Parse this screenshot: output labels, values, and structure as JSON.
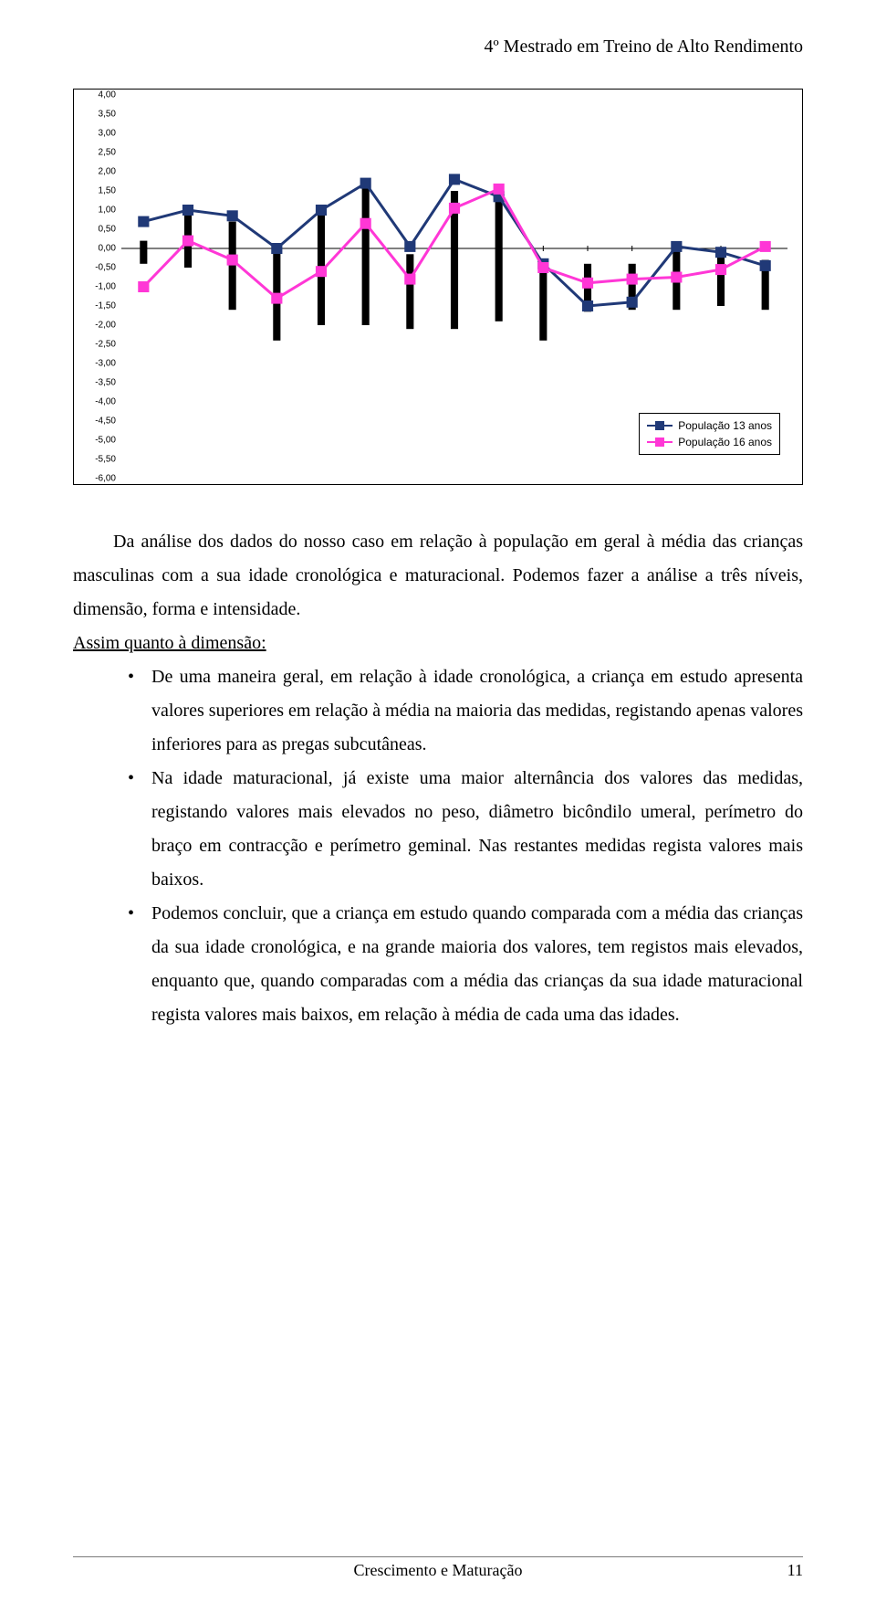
{
  "running_head": "4º Mestrado em Treino de Alto Rendimento",
  "chart": {
    "type": "line-with-error-bars",
    "background_color": "#ffffff",
    "border_color": "#000000",
    "ylim_min": -6.0,
    "ylim_max": 4.0,
    "ytick_step": 0.5,
    "ytick_labels": [
      "4,00",
      "3,50",
      "3,00",
      "2,50",
      "2,00",
      "1,50",
      "1,00",
      "0,50",
      "0,00",
      "-0,50",
      "-1,00",
      "-1,50",
      "-2,00",
      "-2,50",
      "-3,00",
      "-3,50",
      "-4,00",
      "-4,50",
      "-5,00",
      "-5,50",
      "-6,00"
    ],
    "label_fontsize": 10,
    "label_color": "#000000",
    "n_points": 15,
    "zero_line": true,
    "series_navy": {
      "label": "População 13 anos",
      "color": "#203977",
      "marker": "square",
      "marker_size": 12,
      "line_width": 3,
      "values": [
        0.7,
        1.0,
        0.85,
        0.0,
        1.0,
        1.7,
        0.05,
        1.8,
        1.35,
        -0.4,
        -1.5,
        -1.4,
        0.05,
        -0.1,
        -0.45
      ]
    },
    "series_magenta": {
      "label": "População 16 anos",
      "color": "#ff37d6",
      "marker": "square",
      "marker_size": 12,
      "line_width": 3,
      "values": [
        -1.0,
        0.2,
        -0.3,
        -1.3,
        -0.6,
        0.65,
        -0.8,
        1.05,
        1.55,
        -0.5,
        -0.9,
        -0.8,
        -0.75,
        -0.55,
        0.05
      ]
    },
    "error_bars": {
      "color": "#000000",
      "width": 8,
      "pairs": [
        [
          0.2,
          -0.4
        ],
        [
          0.9,
          -0.5
        ],
        [
          0.7,
          -1.6
        ],
        [
          -0.1,
          -2.4
        ],
        [
          0.9,
          -2.0
        ],
        [
          1.6,
          -2.0
        ],
        [
          -0.15,
          -2.1
        ],
        [
          1.5,
          -2.1
        ],
        [
          1.25,
          -1.9
        ],
        [
          -0.35,
          -2.4
        ],
        [
          -0.4,
          -1.65
        ],
        [
          -0.4,
          -1.6
        ],
        [
          0.0,
          -1.6
        ],
        [
          -0.15,
          -1.5
        ],
        [
          -0.3,
          -1.6
        ]
      ]
    },
    "legend_series": [
      "series_navy",
      "series_magenta"
    ]
  },
  "para1": "Da análise dos dados do nosso caso em relação à população em geral à média das crianças masculinas com a sua idade cronológica e maturacional. Podemos fazer a análise a três níveis, dimensão, forma e intensidade.",
  "assim_heading": "Assim quanto à dimensão:",
  "bullets": [
    "De uma maneira geral, em relação à idade cronológica, a criança em estudo apresenta valores superiores em relação à média na maioria das medidas, registando apenas valores inferiores para as pregas subcutâneas.",
    "Na idade maturacional, já existe uma maior alternância dos valores das medidas, registando valores mais elevados no peso, diâmetro bicôndilo umeral, perímetro do braço em contracção e perímetro geminal. Nas restantes medidas regista valores mais baixos.",
    "Podemos concluir, que a criança em estudo quando comparada com a média das crianças da sua idade cronológica, e na grande maioria dos valores, tem registos mais elevados, enquanto que, quando comparadas com a média das crianças da sua idade maturacional regista valores mais baixos, em relação à média de cada uma das idades."
  ],
  "footer_text": "Crescimento e Maturação",
  "page_number": "11"
}
